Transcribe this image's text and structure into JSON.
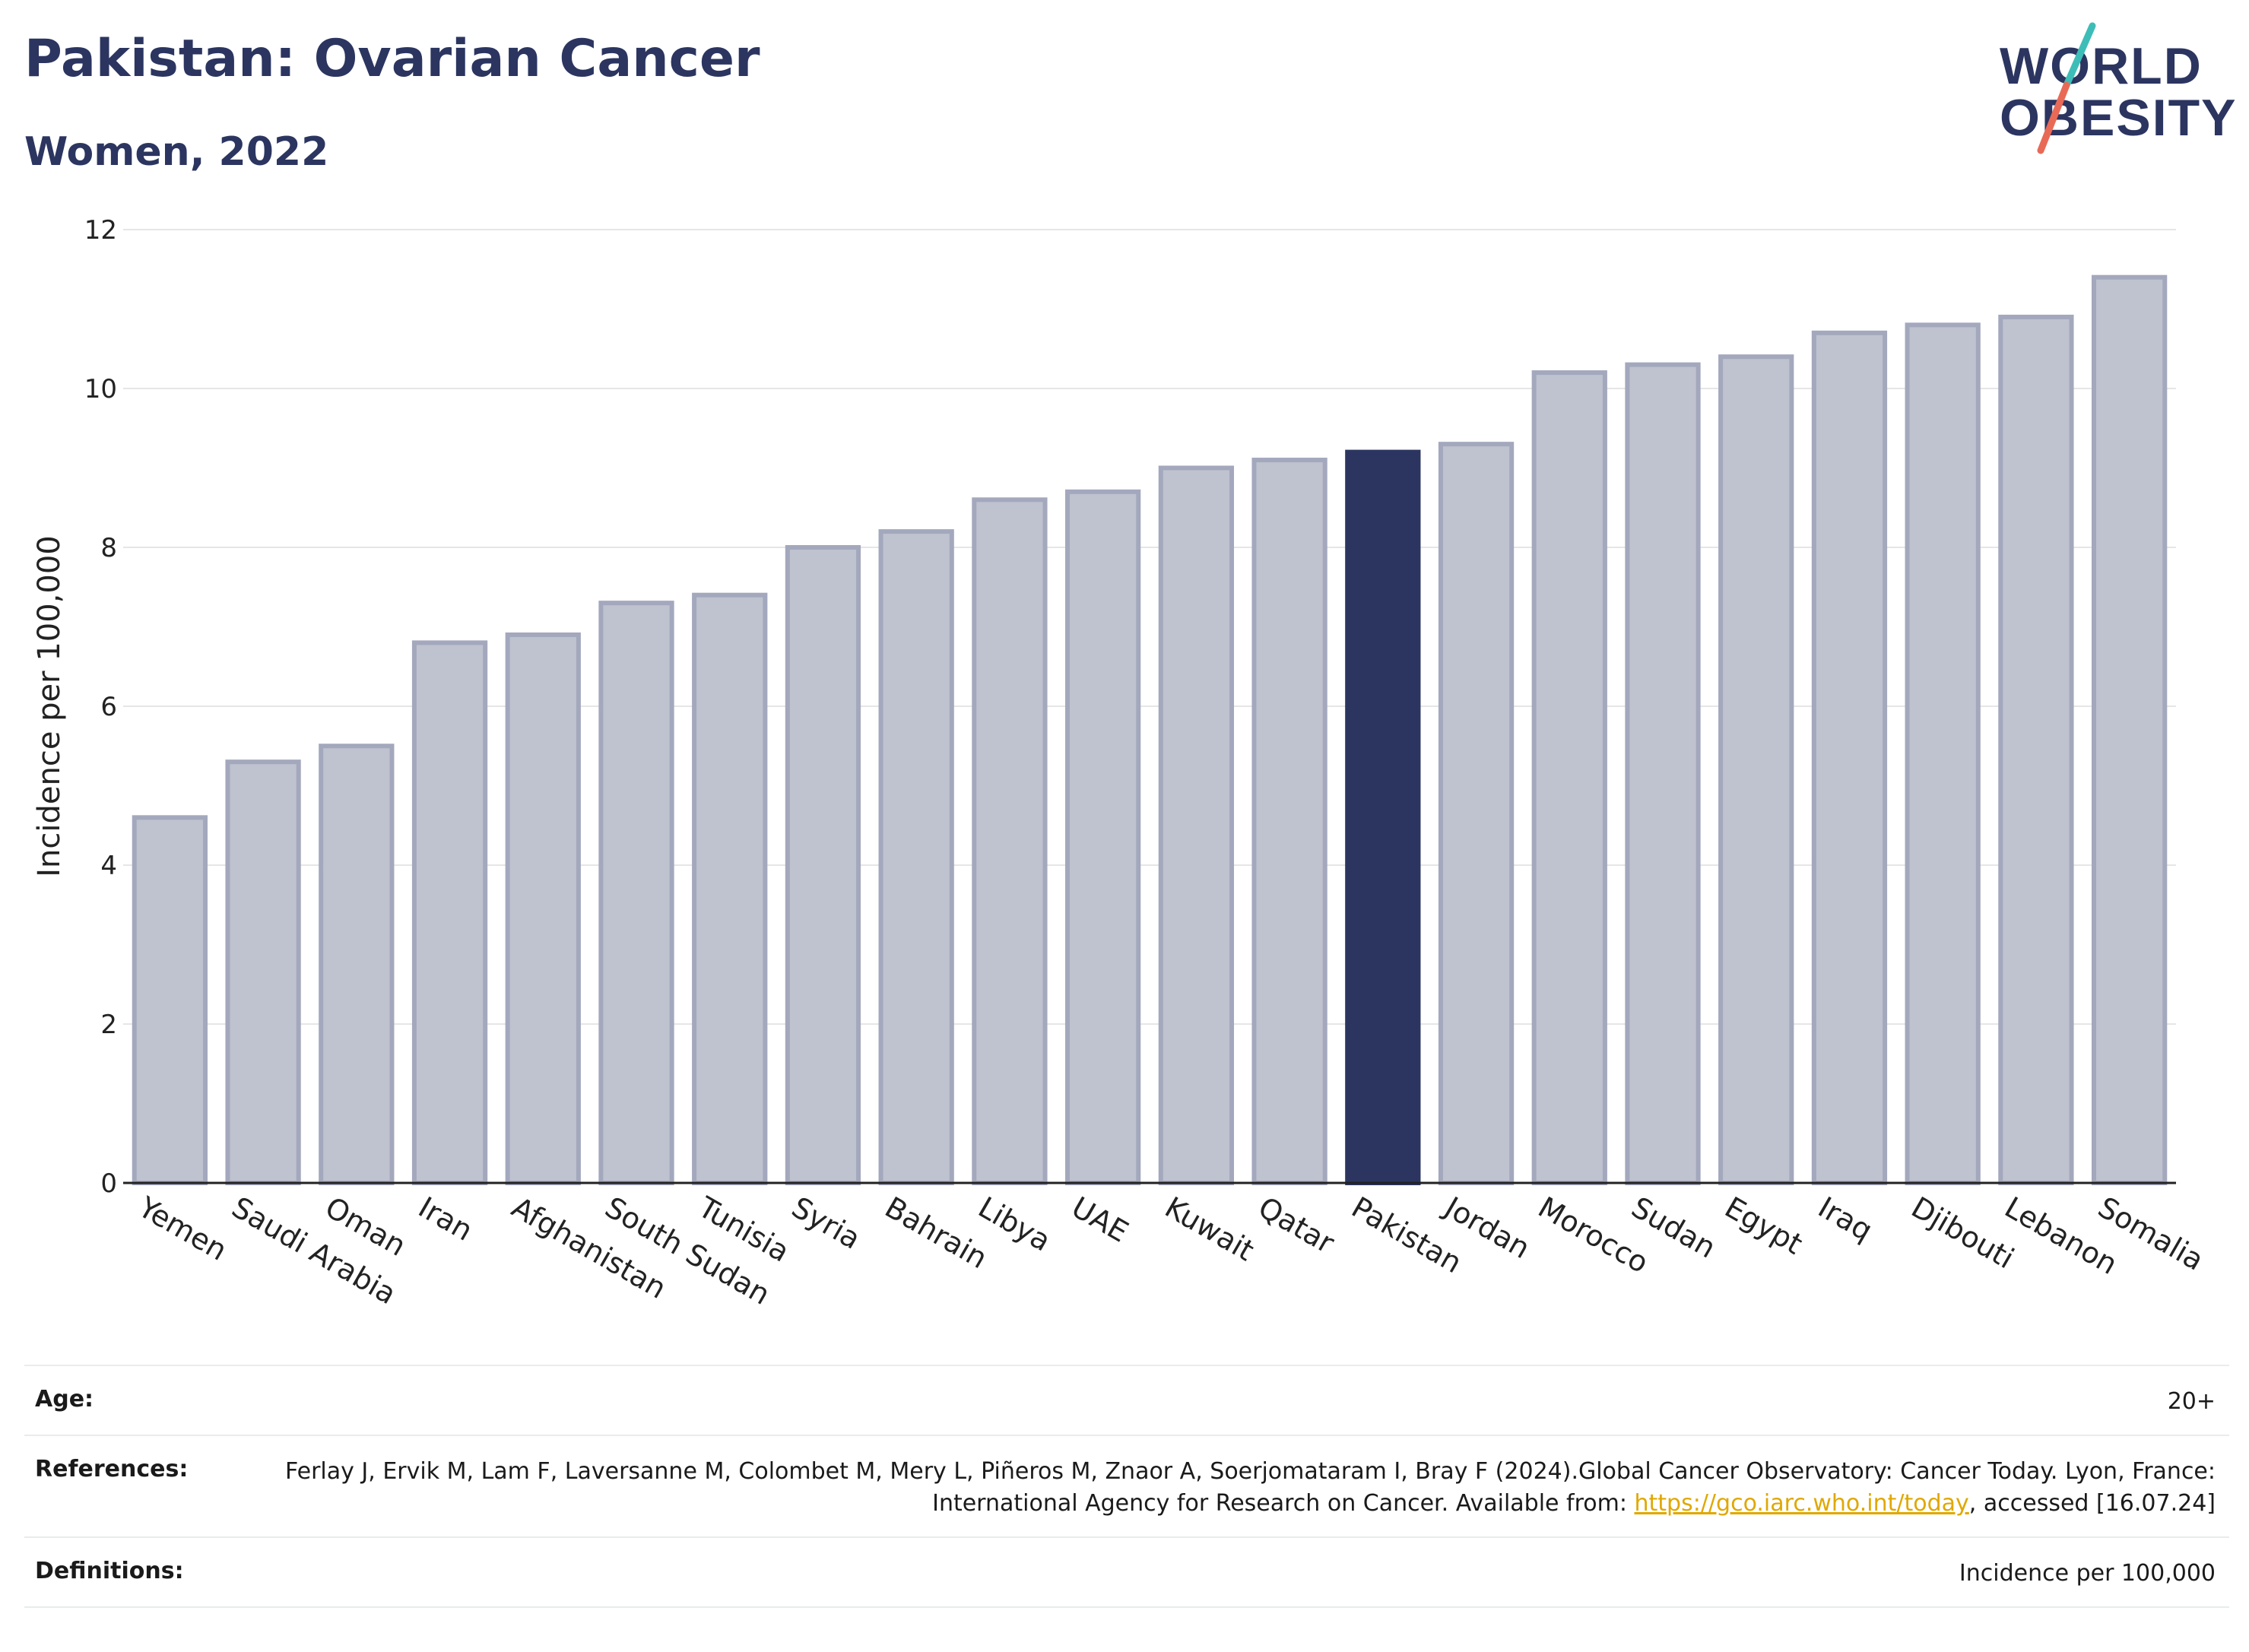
{
  "header": {
    "title": "Pakistan: Ovarian Cancer",
    "subtitle": "Women, 2022"
  },
  "logo": {
    "line1": "WORLD",
    "line2": "OBESITY"
  },
  "colors": {
    "highlight": "#2b3560",
    "bar_fill": "#bfc2cf",
    "bar_stroke": "#a3a8bd",
    "logo_teal": "#3dbdb8",
    "logo_coral": "#e86a56",
    "link": "#e0a800"
  },
  "chart_data": {
    "type": "bar",
    "ylabel": "Incidence per 100,000",
    "xlabel": "",
    "ylim": [
      0,
      12
    ],
    "yticks": [
      0,
      2,
      4,
      6,
      8,
      10,
      12
    ],
    "grid": true,
    "highlight": "Pakistan",
    "categories": [
      "Yemen",
      "Saudi Arabia",
      "Oman",
      "Iran",
      "Afghanistan",
      "South Sudan",
      "Tunisia",
      "Syria",
      "Bahrain",
      "Libya",
      "UAE",
      "Kuwait",
      "Qatar",
      "Pakistan",
      "Jordan",
      "Morocco",
      "Sudan",
      "Egypt",
      "Iraq",
      "Djibouti",
      "Lebanon",
      "Somalia"
    ],
    "values": [
      4.6,
      5.3,
      5.5,
      6.8,
      6.9,
      7.3,
      7.4,
      8.0,
      8.2,
      8.6,
      8.7,
      9.0,
      9.1,
      9.2,
      9.3,
      10.2,
      10.3,
      10.4,
      10.7,
      10.8,
      10.9,
      11.4
    ]
  },
  "info": {
    "age_label": "Age:",
    "age_value": "20+",
    "references_label": "References:",
    "references_text_1": "Ferlay J, Ervik M, Lam F, Laversanne M, Colombet M, Mery L, Piñeros M, Znaor A, Soerjomataram I, Bray F (2024).Global Cancer Observatory: Cancer Today. Lyon, France: International Agency for Research on Cancer. Available from: ",
    "references_link": "https://gco.iarc.who.int/today",
    "references_text_2": ", accessed [16.07.24]",
    "definitions_label": "Definitions:",
    "definitions_value": "Incidence per 100,000"
  }
}
